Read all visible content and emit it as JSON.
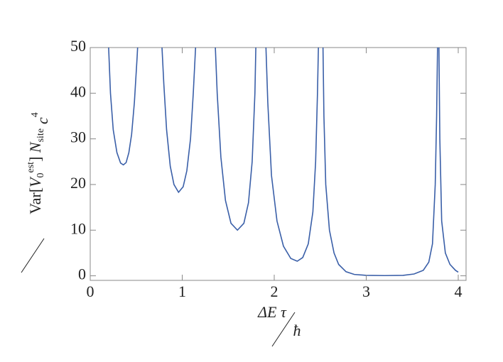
{
  "chart_data": {
    "type": "line",
    "x_label": [
      "ΔE τ",
      "ħ"
    ],
    "y_label": [
      "Var[",
      "V",
      "0",
      "est",
      "] ",
      "N",
      "site",
      "c",
      "4"
    ],
    "x": [
      0.2,
      0.22,
      0.25,
      0.29,
      0.33,
      0.36,
      0.39,
      0.42,
      0.45,
      0.48,
      0.51,
      0.515,
      null,
      0.78,
      0.8,
      0.83,
      0.87,
      0.91,
      0.96,
      1.01,
      1.05,
      1.09,
      1.12,
      1.145,
      null,
      1.36,
      1.38,
      1.42,
      1.47,
      1.53,
      1.6,
      1.67,
      1.72,
      1.76,
      1.79,
      1.8,
      null,
      1.91,
      1.93,
      1.97,
      2.03,
      2.1,
      2.18,
      2.25,
      2.31,
      2.37,
      2.42,
      2.45,
      2.47,
      2.48,
      null,
      2.53,
      2.54,
      2.56,
      2.6,
      2.65,
      2.7,
      2.78,
      2.87,
      3.0,
      3.2,
      3.4,
      3.52,
      3.62,
      3.68,
      3.72,
      3.75,
      3.765,
      3.775,
      null,
      3.79,
      3.8,
      3.82,
      3.86,
      3.91,
      3.97,
      4.0
    ],
    "series": [
      {
        "color": "#3a5fa8",
        "values": [
          50,
          40,
          32,
          27,
          24.7,
          24.3,
          24.8,
          27,
          31,
          38,
          48,
          50,
          null,
          50,
          42,
          32,
          24,
          20,
          18.3,
          19.5,
          23,
          30,
          40,
          50,
          null,
          50,
          40,
          26,
          16.5,
          11.5,
          10,
          11.5,
          16,
          25,
          40,
          50,
          null,
          50,
          38,
          22,
          12,
          6.5,
          3.8,
          3.2,
          4,
          7,
          14,
          25,
          40,
          50,
          null,
          50,
          35,
          20,
          10,
          5,
          2.5,
          0.9,
          0.3,
          0.1,
          0.05,
          0.1,
          0.4,
          1.2,
          3,
          7,
          20,
          35,
          50,
          null,
          50,
          30,
          12,
          5,
          2.5,
          1.2,
          0.8
        ]
      }
    ],
    "xlim": [
      0,
      4.085
    ],
    "ylim": [
      -1,
      50
    ],
    "xticks": [
      0,
      1,
      2,
      3,
      4
    ],
    "yticks": [
      0,
      10,
      20,
      30,
      40,
      50
    ]
  }
}
